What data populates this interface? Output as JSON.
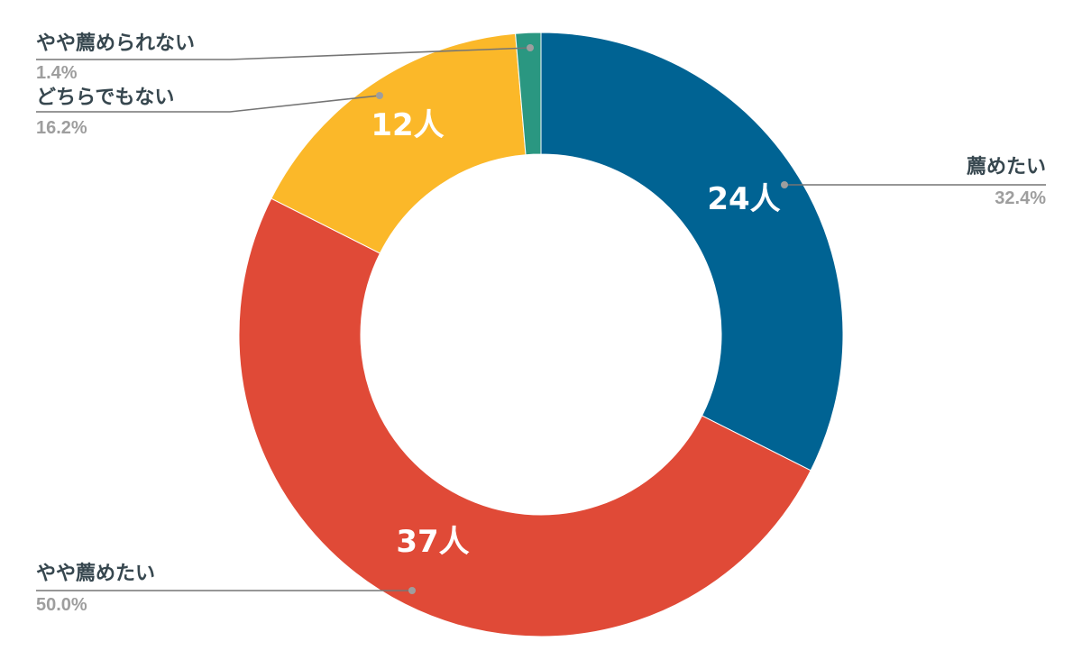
{
  "chart_data": {
    "type": "pie",
    "donut": true,
    "start_angle_deg": 0,
    "slices": [
      {
        "label": "薦めたい",
        "count": 24,
        "value_label": "24人",
        "percent_label": "32.4%",
        "color": "#006393"
      },
      {
        "label": "やや薦めたい",
        "count": 37,
        "value_label": "37人",
        "percent_label": "50.0%",
        "color": "#e04a37"
      },
      {
        "label": "どちらでもない",
        "count": 12,
        "value_label": "12人",
        "percent_label": "16.2%",
        "color": "#fbb829"
      },
      {
        "label": "やや薦められない",
        "count": 1,
        "value_label": "",
        "percent_label": "1.4%",
        "color": "#2a9781"
      }
    ],
    "legend": "none"
  }
}
